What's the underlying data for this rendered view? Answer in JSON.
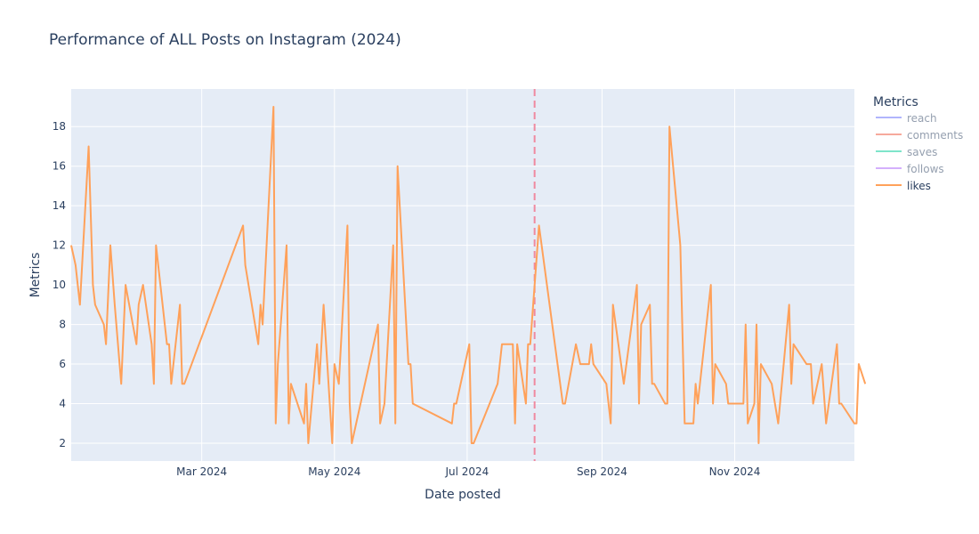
{
  "chart_data": {
    "type": "line",
    "title": "Performance of ALL Posts on Instagram (2024)",
    "xlabel": "Date posted",
    "ylabel": "Metrics",
    "xlim": [
      "2024-01-01",
      "2024-12-26"
    ],
    "ylim": [
      1.1,
      19.9
    ],
    "x_ticks": [
      {
        "date": "2024-03-01",
        "label": "Mar 2024"
      },
      {
        "date": "2024-05-01",
        "label": "May 2024"
      },
      {
        "date": "2024-07-01",
        "label": "Jul 2024"
      },
      {
        "date": "2024-09-01",
        "label": "Sep 2024"
      },
      {
        "date": "2024-11-01",
        "label": "Nov 2024"
      }
    ],
    "y_ticks": [
      2,
      4,
      6,
      8,
      10,
      12,
      14,
      16,
      18
    ],
    "grid": true,
    "background_color": "#e5ecf6",
    "legend_title": "Metrics",
    "legend_position": "right",
    "marker_line_date": "2024-08-01",
    "series": [
      {
        "name": "reach",
        "color": "#636efa",
        "visible": false,
        "values": []
      },
      {
        "name": "comments",
        "color": "#ef553b",
        "visible": false,
        "values": []
      },
      {
        "name": "saves",
        "color": "#00cc96",
        "visible": false,
        "values": []
      },
      {
        "name": "follows",
        "color": "#ab63fa",
        "visible": false,
        "values": []
      },
      {
        "name": "likes",
        "color": "#ffa15a",
        "visible": true,
        "values": [
          [
            "2024-01-01",
            12
          ],
          [
            "2024-01-03",
            11
          ],
          [
            "2024-01-05",
            9
          ],
          [
            "2024-01-09",
            17
          ],
          [
            "2024-01-11",
            10
          ],
          [
            "2024-01-12",
            9
          ],
          [
            "2024-01-16",
            8
          ],
          [
            "2024-01-17",
            7
          ],
          [
            "2024-01-19",
            12
          ],
          [
            "2024-01-21",
            9
          ],
          [
            "2024-01-24",
            5
          ],
          [
            "2024-01-26",
            10
          ],
          [
            "2024-01-31",
            7
          ],
          [
            "2024-02-01",
            9
          ],
          [
            "2024-02-03",
            10
          ],
          [
            "2024-02-07",
            7
          ],
          [
            "2024-02-08",
            5
          ],
          [
            "2024-02-09",
            12
          ],
          [
            "2024-02-14",
            7
          ],
          [
            "2024-02-15",
            7
          ],
          [
            "2024-02-16",
            5
          ],
          [
            "2024-02-20",
            9
          ],
          [
            "2024-02-21",
            5
          ],
          [
            "2024-02-22",
            5
          ],
          [
            "2024-03-20",
            13
          ],
          [
            "2024-03-21",
            11
          ],
          [
            "2024-03-27",
            7
          ],
          [
            "2024-03-28",
            9
          ],
          [
            "2024-03-29",
            8
          ],
          [
            "2024-04-03",
            19
          ],
          [
            "2024-04-04",
            3
          ],
          [
            "2024-04-05",
            6
          ],
          [
            "2024-04-09",
            12
          ],
          [
            "2024-04-10",
            3
          ],
          [
            "2024-04-11",
            5
          ],
          [
            "2024-04-17",
            3
          ],
          [
            "2024-04-18",
            5
          ],
          [
            "2024-04-19",
            2
          ],
          [
            "2024-04-23",
            7
          ],
          [
            "2024-04-24",
            5
          ],
          [
            "2024-04-26",
            9
          ],
          [
            "2024-04-30",
            2
          ],
          [
            "2024-05-01",
            6
          ],
          [
            "2024-05-03",
            5
          ],
          [
            "2024-05-07",
            13
          ],
          [
            "2024-05-08",
            4
          ],
          [
            "2024-05-09",
            2
          ],
          [
            "2024-05-21",
            8
          ],
          [
            "2024-05-22",
            3
          ],
          [
            "2024-05-24",
            4
          ],
          [
            "2024-05-28",
            12
          ],
          [
            "2024-05-29",
            3
          ],
          [
            "2024-05-30",
            16
          ],
          [
            "2024-06-04",
            6
          ],
          [
            "2024-06-05",
            6
          ],
          [
            "2024-06-06",
            4
          ],
          [
            "2024-06-24",
            3
          ],
          [
            "2024-06-25",
            4
          ],
          [
            "2024-06-26",
            4
          ],
          [
            "2024-07-02",
            7
          ],
          [
            "2024-07-03",
            2
          ],
          [
            "2024-07-04",
            2
          ],
          [
            "2024-07-15",
            5
          ],
          [
            "2024-07-17",
            7
          ],
          [
            "2024-07-22",
            7
          ],
          [
            "2024-07-23",
            3
          ],
          [
            "2024-07-24",
            7
          ],
          [
            "2024-07-28",
            4
          ],
          [
            "2024-07-29",
            7
          ],
          [
            "2024-07-30",
            7
          ],
          [
            "2024-08-03",
            13
          ],
          [
            "2024-08-14",
            4
          ],
          [
            "2024-08-15",
            4
          ],
          [
            "2024-08-20",
            7
          ],
          [
            "2024-08-22",
            6
          ],
          [
            "2024-08-26",
            6
          ],
          [
            "2024-08-27",
            7
          ],
          [
            "2024-08-28",
            6
          ],
          [
            "2024-09-03",
            5
          ],
          [
            "2024-09-05",
            3
          ],
          [
            "2024-09-06",
            9
          ],
          [
            "2024-09-11",
            5
          ],
          [
            "2024-09-17",
            10
          ],
          [
            "2024-09-18",
            4
          ],
          [
            "2024-09-19",
            8
          ],
          [
            "2024-09-23",
            9
          ],
          [
            "2024-09-24",
            5
          ],
          [
            "2024-09-25",
            5
          ],
          [
            "2024-09-30",
            4
          ],
          [
            "2024-10-01",
            4
          ],
          [
            "2024-10-02",
            18
          ],
          [
            "2024-10-07",
            12
          ],
          [
            "2024-10-09",
            3
          ],
          [
            "2024-10-13",
            3
          ],
          [
            "2024-10-14",
            5
          ],
          [
            "2024-10-15",
            4
          ],
          [
            "2024-10-21",
            10
          ],
          [
            "2024-10-22",
            4
          ],
          [
            "2024-10-23",
            6
          ],
          [
            "2024-10-28",
            5
          ],
          [
            "2024-10-29",
            4
          ],
          [
            "2024-11-05",
            4
          ],
          [
            "2024-11-06",
            8
          ],
          [
            "2024-11-07",
            3
          ],
          [
            "2024-11-10",
            4
          ],
          [
            "2024-11-11",
            8
          ],
          [
            "2024-11-12",
            2
          ],
          [
            "2024-11-13",
            6
          ],
          [
            "2024-11-18",
            5
          ],
          [
            "2024-11-21",
            3
          ],
          [
            "2024-11-26",
            9
          ],
          [
            "2024-11-27",
            5
          ],
          [
            "2024-11-28",
            7
          ],
          [
            "2024-12-04",
            6
          ],
          [
            "2024-12-06",
            6
          ],
          [
            "2024-12-07",
            4
          ],
          [
            "2024-12-11",
            6
          ],
          [
            "2024-12-13",
            3
          ],
          [
            "2024-12-18",
            7
          ],
          [
            "2024-12-19",
            4
          ],
          [
            "2024-12-20",
            4
          ],
          [
            "2024-12-26",
            3
          ],
          [
            "2024-12-27",
            3
          ],
          [
            "2024-12-28",
            6
          ],
          [
            "2024-12-31",
            5
          ]
        ]
      }
    ]
  }
}
